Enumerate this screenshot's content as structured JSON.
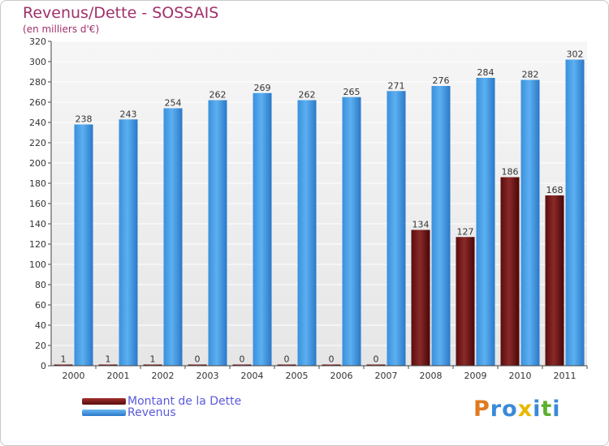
{
  "chart_data": {
    "type": "bar",
    "title": "Revenus/Dette - SOSSAIS",
    "subtitle": "(en milliers d'€)",
    "categories": [
      "2000",
      "2001",
      "2002",
      "2003",
      "2004",
      "2005",
      "2006",
      "2007",
      "2008",
      "2009",
      "2010",
      "2011"
    ],
    "series": [
      {
        "name": "Montant de la Dette",
        "values": [
          1,
          1,
          1,
          0,
          0,
          0,
          0,
          0,
          134,
          127,
          186,
          168
        ],
        "color": "#7a1a1a"
      },
      {
        "name": "Revenus",
        "values": [
          238,
          243,
          254,
          262,
          269,
          262,
          265,
          271,
          276,
          284,
          282,
          302
        ],
        "color": "#4a9fe6"
      }
    ],
    "ylim": [
      0,
      320
    ],
    "yticks": [
      0,
      20,
      40,
      60,
      80,
      100,
      120,
      140,
      160,
      180,
      200,
      220,
      240,
      260,
      280,
      300,
      320
    ],
    "grid": true,
    "legend": "bottom-left"
  },
  "logo": {
    "letters": [
      "P",
      "r",
      "o",
      "x",
      "i",
      "t",
      "i"
    ],
    "colors": [
      "#e07a20",
      "#3a8ad8",
      "#3a8ad8",
      "#e8b800",
      "#3a8ad8",
      "#5cb030",
      "#3a8ad8"
    ]
  }
}
